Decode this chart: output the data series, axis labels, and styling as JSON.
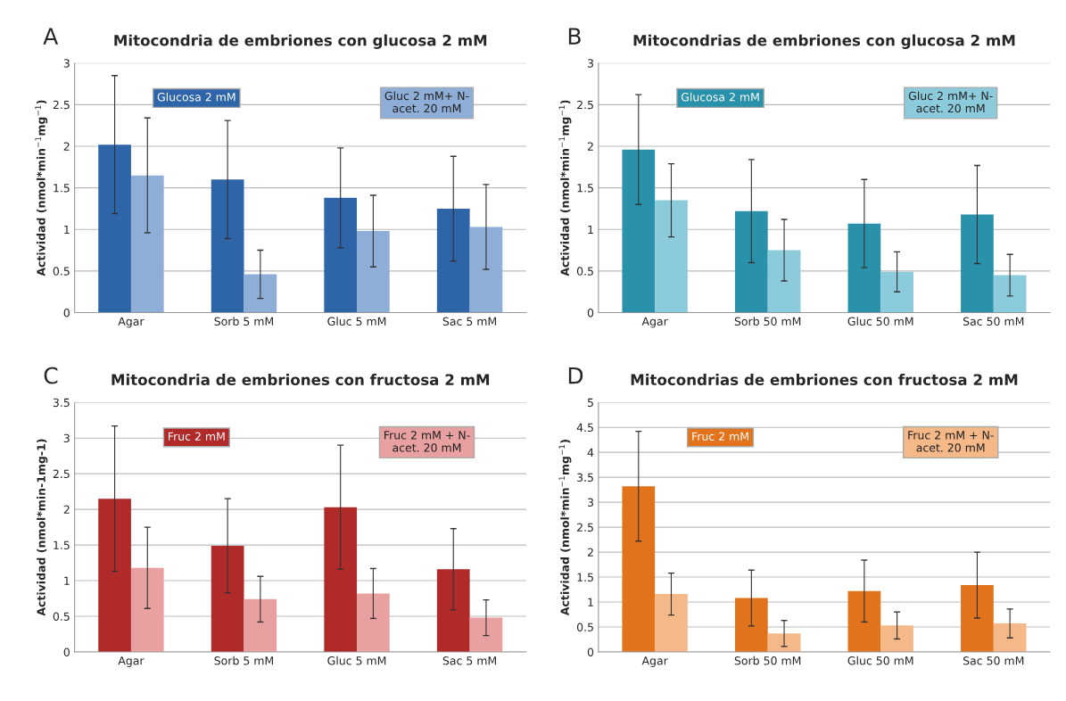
{
  "chart_data": [
    {
      "type": "bar",
      "title": "Mitocondria de embriones con glucosa 2 mM",
      "ylabel": "Actividad (nmol*min$^{−1}$mg$^{−1}$)",
      "annotations": [
        "A"
      ],
      "categories": [
        "Agar",
        "Sorb 5 mM",
        "Gluc 5 mM",
        "Sac 5 mM"
      ],
      "ylim": [
        0,
        3
      ],
      "yticks": [
        0,
        0.5,
        1,
        1.5,
        2,
        2.5,
        3
      ],
      "grid": "y",
      "series": [
        {
          "name": "Glucosa 2 mM",
          "color": "#2e64a8",
          "values": [
            2.02,
            1.6,
            1.38,
            1.25
          ],
          "errors": [
            0.83,
            0.71,
            0.6,
            0.63
          ]
        },
        {
          "name": "Gluc 2 mM+ N-\nacet. 20 mM",
          "color": "#8eaed8",
          "values": [
            1.65,
            0.46,
            0.98,
            1.03
          ],
          "errors": [
            0.69,
            0.29,
            0.43,
            0.51
          ]
        }
      ]
    },
    {
      "type": "bar",
      "title": "Mitocondrias de embriones con glucosa 2 mM",
      "ylabel": "Actividad (nmol*min$^{−1}$mg$^{−1}$)",
      "annotations": [
        "B"
      ],
      "categories": [
        "Agar",
        "Sorb 50 mM",
        "Gluc 50 mM",
        "Sac 50 mM"
      ],
      "ylim": [
        0,
        3
      ],
      "yticks": [
        0,
        0.5,
        1,
        1.5,
        2,
        2.5,
        3
      ],
      "grid": "y",
      "series": [
        {
          "name": "Glucosa 2 mM",
          "color": "#2a91ab",
          "values": [
            1.96,
            1.22,
            1.07,
            1.18
          ],
          "errors": [
            0.66,
            0.62,
            0.53,
            0.59
          ]
        },
        {
          "name": "Gluc 2 mM+ N-\nacet. 20 mM",
          "color": "#8ccbdb",
          "values": [
            1.35,
            0.75,
            0.49,
            0.45
          ],
          "errors": [
            0.44,
            0.37,
            0.24,
            0.25
          ]
        }
      ]
    },
    {
      "type": "bar",
      "title": "Mitocondria de embriones con fructosa 2 mM",
      "ylabel": "Actividad (nmol*min-1mg-1)",
      "annotations": [
        "C"
      ],
      "categories": [
        "Agar",
        "Sorb 5 mM",
        "Gluc 5 mM",
        "Sac 5 mM"
      ],
      "ylim": [
        0,
        3.5
      ],
      "yticks": [
        0,
        0.5,
        1,
        1.5,
        2,
        2.5,
        3,
        3.5
      ],
      "grid": "y",
      "series": [
        {
          "name": "Fruc 2 mM",
          "color": "#b02a2a",
          "values": [
            2.15,
            1.49,
            2.03,
            1.16
          ],
          "errors": [
            1.02,
            0.66,
            0.87,
            0.57
          ]
        },
        {
          "name": "Fruc 2 mM + N-\nacet. 20 mM",
          "color": "#e8a0a0",
          "values": [
            1.18,
            0.74,
            0.82,
            0.48
          ],
          "errors": [
            0.57,
            0.32,
            0.35,
            0.25
          ]
        }
      ]
    },
    {
      "type": "bar",
      "title": "Mitocondrias de embriones con fructosa 2 mM",
      "ylabel": "Actividad (nmol*min$^{−1}$mg$^{−1}$)",
      "annotations": [
        "D"
      ],
      "categories": [
        "Agar",
        "Sorb 50 mM",
        "Gluc 50 mM",
        "Sac 50 mM"
      ],
      "ylim": [
        0,
        5
      ],
      "yticks": [
        0,
        0.5,
        1,
        1.5,
        2,
        2.5,
        3,
        3.5,
        4,
        4.5,
        5
      ],
      "grid": "y",
      "series": [
        {
          "name": "Fruc 2 mM",
          "color": "#e0731c",
          "values": [
            3.32,
            1.08,
            1.22,
            1.34
          ],
          "errors": [
            1.1,
            0.56,
            0.62,
            0.66
          ]
        },
        {
          "name": "Fruc 2 mM + N-\nacet. 20 mM",
          "color": "#f5b888",
          "values": [
            1.16,
            0.37,
            0.53,
            0.57
          ],
          "errors": [
            0.42,
            0.26,
            0.27,
            0.29
          ]
        }
      ]
    }
  ]
}
